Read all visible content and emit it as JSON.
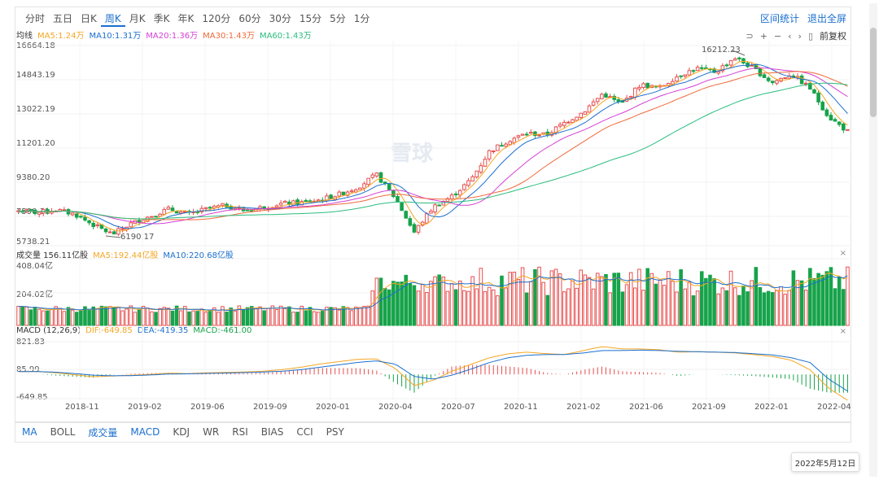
{
  "periods": [
    "分时",
    "五日",
    "日K",
    "周K",
    "月K",
    "季K",
    "年K",
    "120分",
    "60分",
    "30分",
    "15分",
    "5分",
    "1分"
  ],
  "active_period": "周K",
  "top_right": {
    "range_stats": "区间统计",
    "exit_fullscreen": "退出全屏"
  },
  "toolbar": {
    "undo": "⊃",
    "zoom_in": "+",
    "zoom_out": "−",
    "prev": "‹",
    "next": "›",
    "toggle": "▯",
    "adjust": "前复权"
  },
  "watermark": "雪球",
  "price_panel": {
    "label": "均线",
    "ma": [
      {
        "text": "MA5:1.24万",
        "color": "#f5a623"
      },
      {
        "text": "MA10:1.31万",
        "color": "#1b6fce"
      },
      {
        "text": "MA20:1.36万",
        "color": "#d63fd6"
      },
      {
        "text": "MA30:1.43万",
        "color": "#f06a3a"
      },
      {
        "text": "MA60:1.43万",
        "color": "#2bbd7e"
      }
    ],
    "y_labels": [
      "16664.18",
      "14843.19",
      "13022.19",
      "11201.20",
      "9380.20",
      "",
      "5738.21"
    ],
    "max_label": "16212.23",
    "min_label": "6190.17",
    "left_overlay": "7590.31"
  },
  "volume_panel": {
    "title": "成交量 156.11亿股",
    "ma5": "MA5:192.44亿股",
    "ma10": "MA10:220.68亿股",
    "y_top": "408.04亿",
    "y_mid": "204.02亿",
    "ma5_color": "#f5a623",
    "ma10_color": "#1b6fce"
  },
  "macd_panel": {
    "title": "MACD (12,26,9)",
    "dif": "DIF:-649.85",
    "dea": "DEA:-419.35",
    "macd": "MACD:-461.00",
    "y_top": "821.83",
    "y_mid": "85.99",
    "y_bottom": "-649.85"
  },
  "close_icon": "×",
  "x_labels": [
    "2018-11",
    "2019-02",
    "2019-06",
    "2019-09",
    "2020-01",
    "2020-04",
    "2020-07",
    "2020-11",
    "2021-02",
    "2021-06",
    "2021-09",
    "2022-01",
    "2022-04"
  ],
  "indicator_tabs": [
    "MA",
    "BOLL",
    "成交量",
    "MACD",
    "KDJ",
    "WR",
    "RSI",
    "BIAS",
    "CCI",
    "PSY"
  ],
  "date_tooltip": "2022年5月12日",
  "colors": {
    "up": "#e84e4e",
    "down": "#17a34a",
    "accent": "#1b6fce"
  },
  "chart_data": {
    "type": "candlestick",
    "title": "",
    "price_range": [
      5738.21,
      16664.18
    ],
    "volume_range": [
      0,
      408.04
    ],
    "macd_range": [
      -649.85,
      821.83
    ],
    "annotations": {
      "high": 16212.23,
      "low": 6190.17
    },
    "close_anchors": [
      7500,
      7400,
      7550,
      7300,
      6700,
      6190,
      6800,
      7200,
      7600,
      7300,
      7600,
      7800,
      7500,
      7700,
      7900,
      7950,
      8100,
      8400,
      8800,
      9500,
      8200,
      6300,
      7700,
      8300,
      9200,
      10800,
      11400,
      11800,
      11700,
      12400,
      13000,
      14000,
      13400,
      14500,
      14300,
      15000,
      15400,
      15200,
      16000,
      15400,
      14600,
      15100,
      14300,
      12700,
      11900
    ],
    "macd_dif": [
      70,
      75,
      40,
      -10,
      -60,
      -40,
      -20,
      0,
      30,
      20,
      40,
      50,
      60,
      80,
      120,
      180,
      260,
      320,
      380,
      390,
      150,
      -280,
      -150,
      80,
      250,
      420,
      520,
      560,
      520,
      500,
      600,
      700,
      640,
      640,
      620,
      560,
      570,
      560,
      540,
      500,
      450,
      360,
      120,
      -350,
      -649.85
    ],
    "macd_dea": [
      70,
      72,
      55,
      20,
      -20,
      -35,
      -30,
      -15,
      10,
      15,
      25,
      35,
      45,
      60,
      80,
      120,
      180,
      240,
      300,
      340,
      260,
      -50,
      -120,
      -20,
      130,
      300,
      420,
      480,
      500,
      500,
      540,
      600,
      600,
      610,
      600,
      580,
      570,
      560,
      550,
      520,
      490,
      420,
      300,
      -120,
      -419.35
    ]
  }
}
